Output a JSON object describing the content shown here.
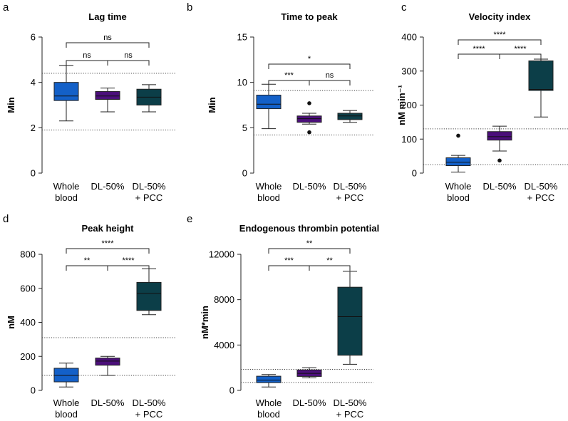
{
  "chart_data": [
    {
      "type": "box",
      "letter": "a",
      "title": "Lag time",
      "xlabel": "",
      "ylabel": "Min",
      "ylim": [
        0,
        6
      ],
      "yticks": [
        "0",
        "2",
        "4",
        "6"
      ],
      "categories": [
        "Whole blood",
        "DL-50%",
        "DL-50% + PCC"
      ],
      "category_lines": [
        [
          "Whole",
          "blood"
        ],
        [
          "DL-50%"
        ],
        [
          "DL-50%",
          "+ PCC"
        ]
      ],
      "colors": [
        "#1360c8",
        "#4b0f7a",
        "#0c3e48"
      ],
      "boxes": [
        {
          "min": 2.3,
          "q1": 3.2,
          "median": 3.4,
          "q3": 4.0,
          "max": 4.75,
          "outliers": []
        },
        {
          "min": 2.7,
          "q1": 3.25,
          "median": 3.4,
          "q3": 3.6,
          "max": 3.75,
          "outliers": []
        },
        {
          "min": 2.7,
          "q1": 3.0,
          "median": 3.35,
          "q3": 3.7,
          "max": 3.9,
          "outliers": []
        }
      ],
      "reference_lines": [
        4.4,
        1.9
      ],
      "significance": [
        {
          "from": 0,
          "to": 1,
          "label": "ns",
          "level": 0
        },
        {
          "from": 1,
          "to": 2,
          "label": "ns",
          "level": 0
        },
        {
          "from": 0,
          "to": 2,
          "label": "ns",
          "level": 1
        }
      ]
    },
    {
      "type": "box",
      "letter": "b",
      "title": "Time to peak",
      "xlabel": "",
      "ylabel": "Min",
      "ylim": [
        0,
        15
      ],
      "yticks": [
        "0",
        "5",
        "10",
        "15"
      ],
      "categories": [
        "Whole blood",
        "DL-50%",
        "DL-50% + PCC"
      ],
      "category_lines": [
        [
          "Whole",
          "blood"
        ],
        [
          "DL-50%"
        ],
        [
          "DL-50%",
          "+ PCC"
        ]
      ],
      "colors": [
        "#1360c8",
        "#4b0f7a",
        "#0c3e48"
      ],
      "boxes": [
        {
          "min": 4.9,
          "q1": 7.1,
          "median": 7.6,
          "q3": 8.6,
          "max": 9.8,
          "outliers": []
        },
        {
          "min": 5.4,
          "q1": 5.6,
          "median": 6.0,
          "q3": 6.3,
          "max": 6.6,
          "outliers": [
            7.7,
            4.5
          ]
        },
        {
          "min": 5.6,
          "q1": 5.9,
          "median": 6.3,
          "q3": 6.6,
          "max": 6.9,
          "outliers": []
        }
      ],
      "reference_lines": [
        9.1,
        4.2
      ],
      "significance": [
        {
          "from": 0,
          "to": 1,
          "label": "***",
          "level": 0
        },
        {
          "from": 1,
          "to": 2,
          "label": "ns",
          "level": 0
        },
        {
          "from": 0,
          "to": 2,
          "label": "*",
          "level": 1
        }
      ]
    },
    {
      "type": "box",
      "letter": "c",
      "title": "Velocity index",
      "xlabel": "",
      "ylabel": "nM min⁻¹",
      "ylim": [
        0,
        400
      ],
      "yticks": [
        "0",
        "100",
        "200",
        "300",
        "400"
      ],
      "categories": [
        "Whole blood",
        "DL-50%",
        "DL-50% + PCC"
      ],
      "category_lines": [
        [
          "Whole",
          "blood"
        ],
        [
          "DL-50%"
        ],
        [
          "DL-50%",
          "+ PCC"
        ]
      ],
      "colors": [
        "#1360c8",
        "#4b0f7a",
        "#0c3e48"
      ],
      "boxes": [
        {
          "min": 3,
          "q1": 22,
          "median": 32,
          "q3": 45,
          "max": 52,
          "outliers": [
            110
          ]
        },
        {
          "min": 65,
          "q1": 97,
          "median": 107,
          "q3": 122,
          "max": 138,
          "outliers": [
            37
          ]
        },
        {
          "min": 165,
          "q1": 243,
          "median": 246,
          "q3": 330,
          "max": 335,
          "outliers": []
        }
      ],
      "reference_lines": [
        130,
        25
      ],
      "significance": [
        {
          "from": 0,
          "to": 1,
          "label": "****",
          "level": 0
        },
        {
          "from": 1,
          "to": 2,
          "label": "****",
          "level": 0
        },
        {
          "from": 0,
          "to": 2,
          "label": "****",
          "level": 1
        }
      ]
    },
    {
      "type": "box",
      "letter": "d",
      "title": "Peak height",
      "xlabel": "",
      "ylabel": "nM",
      "ylim": [
        0,
        800
      ],
      "yticks": [
        "0",
        "200",
        "400",
        "600",
        "800"
      ],
      "categories": [
        "Whole blood",
        "DL-50%",
        "DL-50% + PCC"
      ],
      "category_lines": [
        [
          "Whole",
          "blood"
        ],
        [
          "DL-50%"
        ],
        [
          "DL-50%",
          "+ PCC"
        ]
      ],
      "colors": [
        "#1360c8",
        "#4b0f7a",
        "#0c3e48"
      ],
      "boxes": [
        {
          "min": 20,
          "q1": 50,
          "median": 88,
          "q3": 130,
          "max": 160,
          "outliers": []
        },
        {
          "min": 88,
          "q1": 148,
          "median": 172,
          "q3": 190,
          "max": 200,
          "outliers": []
        },
        {
          "min": 445,
          "q1": 470,
          "median": 570,
          "q3": 635,
          "max": 715,
          "outliers": []
        }
      ],
      "reference_lines": [
        310,
        88
      ],
      "significance": [
        {
          "from": 0,
          "to": 1,
          "label": "**",
          "level": 0
        },
        {
          "from": 1,
          "to": 2,
          "label": "****",
          "level": 0
        },
        {
          "from": 0,
          "to": 2,
          "label": "****",
          "level": 1
        }
      ]
    },
    {
      "type": "box",
      "letter": "e",
      "title": "Endogenous thrombin potential",
      "xlabel": "",
      "ylabel": "nM*min",
      "ylim": [
        0,
        12000
      ],
      "yticks": [
        "0",
        "4000",
        "8000",
        "12000"
      ],
      "categories": [
        "Whole blood",
        "DL-50%",
        "DL-50% + PCC"
      ],
      "category_lines": [
        [
          "Whole",
          "blood"
        ],
        [
          "DL-50%"
        ],
        [
          "DL-50%",
          "+ PCC"
        ]
      ],
      "colors": [
        "#1360c8",
        "#4b0f7a",
        "#0c3e48"
      ],
      "boxes": [
        {
          "min": 300,
          "q1": 680,
          "median": 900,
          "q3": 1250,
          "max": 1400,
          "outliers": []
        },
        {
          "min": 1100,
          "q1": 1230,
          "median": 1500,
          "q3": 1800,
          "max": 2000,
          "outliers": []
        },
        {
          "min": 2300,
          "q1": 3100,
          "median": 6500,
          "q3": 9100,
          "max": 10500,
          "outliers": []
        }
      ],
      "reference_lines": [
        1850,
        700
      ],
      "significance": [
        {
          "from": 0,
          "to": 1,
          "label": "***",
          "level": 0
        },
        {
          "from": 1,
          "to": 2,
          "label": "**",
          "level": 0
        },
        {
          "from": 0,
          "to": 2,
          "label": "**",
          "level": 1
        }
      ]
    }
  ]
}
